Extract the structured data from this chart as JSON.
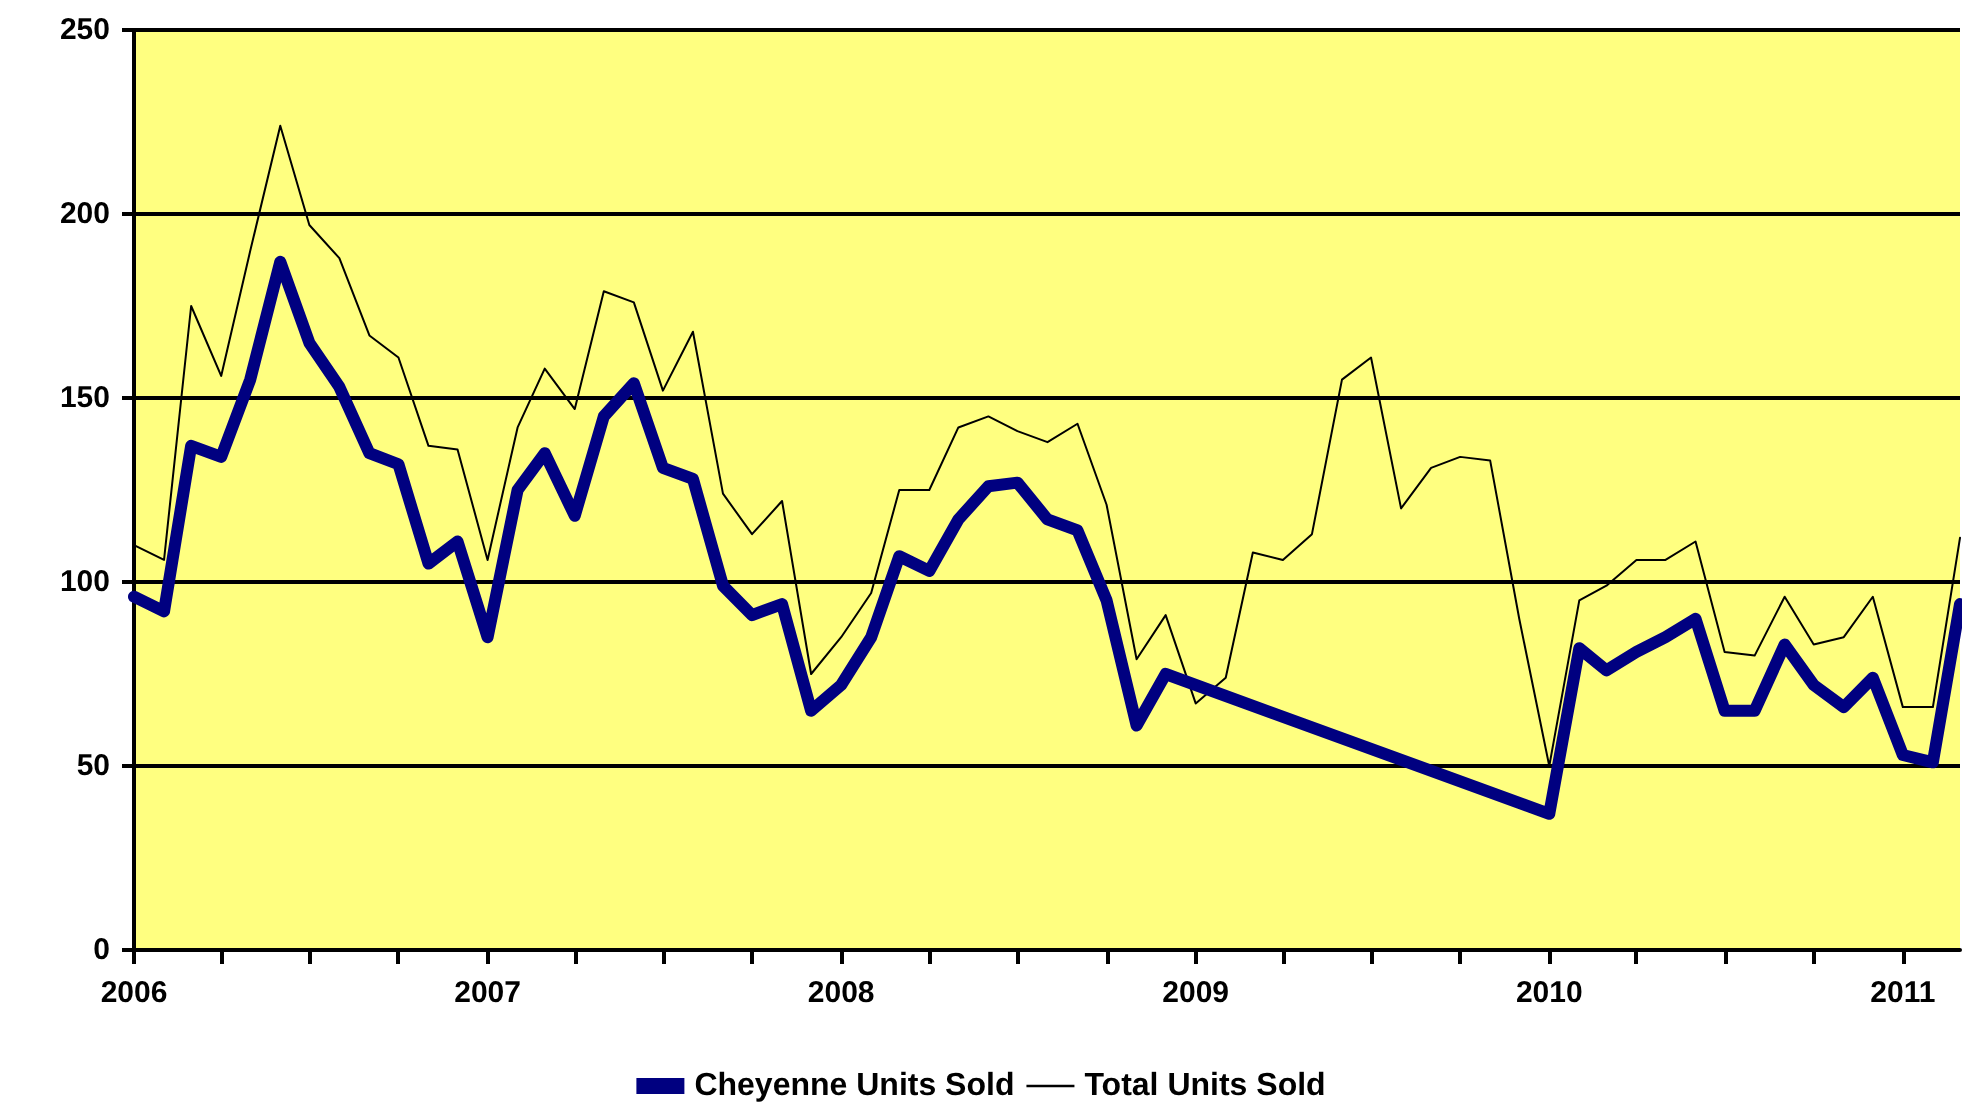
{
  "chart_data": {
    "type": "line",
    "x": [
      "2006-01",
      "2006-02",
      "2006-03",
      "2006-04",
      "2006-05",
      "2006-06",
      "2006-07",
      "2006-08",
      "2006-09",
      "2006-10",
      "2006-11",
      "2006-12",
      "2007-01",
      "2007-02",
      "2007-03",
      "2007-04",
      "2007-05",
      "2007-06",
      "2007-07",
      "2007-08",
      "2007-09",
      "2007-10",
      "2007-11",
      "2007-12",
      "2008-01",
      "2008-02",
      "2008-03",
      "2008-04",
      "2008-05",
      "2008-06",
      "2008-07",
      "2008-08",
      "2008-09",
      "2008-10",
      "2008-11",
      "2008-12",
      "2009-01",
      "2009-02",
      "2009-03",
      "2009-04",
      "2009-05",
      "2009-06",
      "2009-07",
      "2009-08",
      "2009-09",
      "2009-10",
      "2009-11",
      "2009-12",
      "2010-01",
      "2010-02",
      "2010-03",
      "2010-04",
      "2010-05",
      "2010-06",
      "2010-07",
      "2010-08",
      "2010-09",
      "2010-10",
      "2010-11",
      "2010-12",
      "2011-01",
      "2011-02",
      "2011-03"
    ],
    "series": [
      {
        "name": "Cheyenne Units Sold",
        "color": "#000080",
        "x": [
          "2006-01",
          "2006-02",
          "2006-03",
          "2006-04",
          "2006-05",
          "2006-06",
          "2006-07",
          "2006-08",
          "2006-09",
          "2006-10",
          "2006-11",
          "2006-12",
          "2007-01",
          "2007-02",
          "2007-03",
          "2007-04",
          "2007-05",
          "2007-06",
          "2007-07",
          "2007-08",
          "2007-09",
          "2007-10",
          "2007-11",
          "2007-12",
          "2008-01",
          "2008-02",
          "2008-03",
          "2008-04",
          "2008-05",
          "2008-06",
          "2008-07",
          "2008-08",
          "2008-09",
          "2008-10",
          "2008-11",
          "2008-12",
          "2010-01",
          "2010-02",
          "2010-03",
          "2010-04",
          "2010-05",
          "2010-06",
          "2010-07",
          "2010-08",
          "2010-09",
          "2010-10",
          "2010-11",
          "2010-12",
          "2011-01",
          "2011-02",
          "2011-03"
        ],
        "values": [
          96,
          92,
          137,
          134,
          155,
          187,
          165,
          153,
          135,
          132,
          105,
          111,
          85,
          125,
          135,
          118,
          145,
          154,
          131,
          128,
          99,
          91,
          94,
          65,
          72,
          85,
          107,
          103,
          117,
          126,
          127,
          117,
          114,
          95,
          61,
          75,
          37,
          82,
          76,
          81,
          85,
          90,
          65,
          65,
          83,
          72,
          66,
          74,
          53,
          51,
          94
        ]
      },
      {
        "name": "Total Units Sold",
        "color": "#000000",
        "values": [
          110,
          106,
          175,
          156,
          190,
          224,
          197,
          188,
          167,
          161,
          137,
          136,
          106,
          142,
          158,
          147,
          179,
          176,
          152,
          168,
          124,
          113,
          122,
          75,
          85,
          97,
          125,
          125,
          142,
          145,
          141,
          138,
          143,
          121,
          79,
          91,
          67,
          74,
          108,
          106,
          113,
          155,
          161,
          120,
          131,
          134,
          133,
          90,
          50,
          95,
          99,
          106,
          106,
          111,
          81,
          80,
          96,
          83,
          85,
          96,
          66,
          66,
          112
        ]
      }
    ],
    "xlim": [
      "2006-01",
      "2011-03"
    ],
    "xticks": [
      "2006",
      {
        "value": "2006-04",
        "label": null
      },
      {
        "value": "2006-07",
        "label": null
      },
      {
        "value": "2006-10",
        "label": null
      },
      "2007",
      {
        "value": "2007-04",
        "label": null
      },
      {
        "value": "2007-07",
        "label": null
      },
      {
        "value": "2007-10",
        "label": null
      },
      "2008",
      {
        "value": "2008-04",
        "label": null
      },
      {
        "value": "2008-07",
        "label": null
      },
      {
        "value": "2008-10",
        "label": null
      },
      "2009",
      {
        "value": "2009-04",
        "label": null
      },
      {
        "value": "2009-07",
        "label": null
      },
      {
        "value": "2009-10",
        "label": null
      },
      "2010",
      {
        "value": "2010-04",
        "label": null
      },
      {
        "value": "2010-07",
        "label": null
      },
      {
        "value": "2010-10",
        "label": null
      },
      "2011"
    ],
    "ylim": [
      0,
      250
    ],
    "yticks": [
      0,
      50,
      100,
      150,
      200,
      250
    ],
    "grid": "y",
    "legend": "bottom",
    "marker": "none",
    "line_style": "solid"
  }
}
